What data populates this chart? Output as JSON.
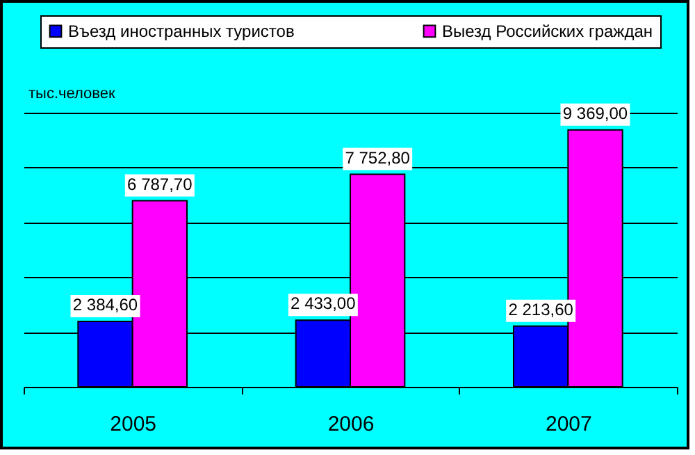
{
  "chart_data": {
    "type": "bar",
    "ylabel": "тыс.человек",
    "categories": [
      "2005",
      "2006",
      "2007"
    ],
    "series": [
      {
        "name": "Въезд иностранных туристов",
        "color": "#0000ff",
        "values": [
          2384.6,
          2433.0,
          2213.6
        ],
        "value_labels": [
          "2 384,60",
          "2 433,00",
          "2 213,60"
        ]
      },
      {
        "name": "Выезд Российских граждан",
        "color": "#ff00ff",
        "values": [
          6787.7,
          7752.8,
          9369.0
        ],
        "value_labels": [
          "6 787,70",
          "7 752,80",
          "9 369,00"
        ]
      }
    ],
    "ylim": [
      0,
      10000
    ],
    "yticks": [
      {
        "value": 0,
        "label": null
      },
      {
        "value": 2000,
        "label": null
      },
      {
        "value": 4000,
        "label": null
      },
      {
        "value": 6000,
        "label": null
      },
      {
        "value": 8000,
        "label": null
      },
      {
        "value": 10000,
        "label": null
      }
    ],
    "grid": true,
    "legend": "top",
    "tick_labels": "x"
  }
}
